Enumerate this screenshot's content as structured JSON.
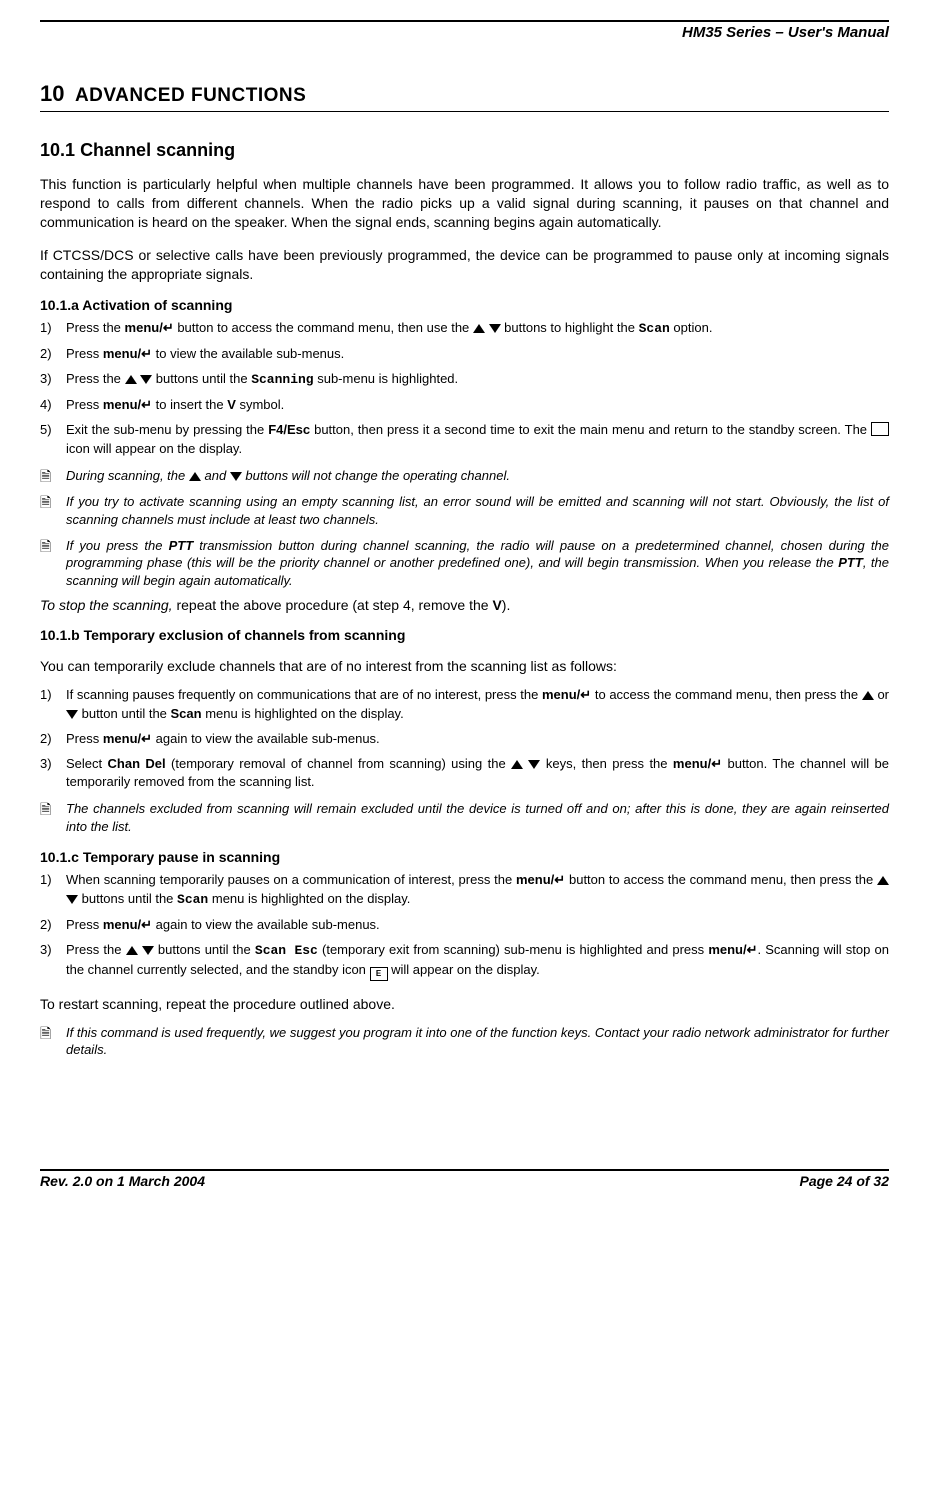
{
  "header": {
    "title": "HM35 Series – User's Manual"
  },
  "chapter": {
    "number": "10",
    "title": "ADVANCED FUNCTIONS"
  },
  "section": {
    "number": "10.1",
    "title": "Channel scanning",
    "para1": "This function is particularly helpful when multiple channels have been programmed.  It allows you to follow radio traffic, as well as to respond to calls from different channels.  When the radio picks up a valid signal during scanning, it pauses on that channel and communication is heard on the speaker.  When the signal ends, scanning begins again automatically.",
    "para2": "If CTCSS/DCS or selective calls have been previously programmed, the device can be programmed to pause only at incoming signals containing the appropriate signals."
  },
  "sub_a": {
    "heading": "10.1.a    Activation of scanning",
    "step1_a": "Press the ",
    "step1_b": " button to access the command menu, then use the ",
    "step1_c": " buttons to highlight the ",
    "step1_d": " option.",
    "step2_a": "Press ",
    "step2_b": " to view the available sub-menus.",
    "step3_a": "Press the ",
    "step3_b": " buttons until the ",
    "step3_c": " sub-menu is highlighted.",
    "step4_a": "Press ",
    "step4_b": " to insert the ",
    "step4_c": " symbol.",
    "step5_a": "Exit the sub-menu by pressing the ",
    "step5_b": " button, then press it a second time to exit the main menu and return to the standby screen.  The ",
    "step5_c": " icon will appear on the display.",
    "note1_a": "During scanning, the ",
    "note1_b": " and ",
    "note1_c": " buttons will not change the operating channel.",
    "note2": "If you try to activate scanning using an empty scanning list, an error sound will be emitted and scanning will not start.  Obviously, the list of scanning channels must include at least two channels.",
    "note3_a": "If you press the ",
    "note3_b": " transmission button during channel scanning, the radio will pause on a predetermined channel, chosen during the programming phase (this will be the priority channel or another predefined one), and will begin transmission.  When you release the ",
    "note3_c": ", the scanning will begin again automatically.",
    "stop_a": "To stop the scanning,",
    "stop_b": " repeat the above procedure (at step 4, remove the ",
    "stop_c": ")."
  },
  "sub_b": {
    "heading": "10.1.b    Temporary exclusion of channels from scanning",
    "intro": "You can temporarily exclude channels that are of no interest from the scanning list as follows:",
    "step1_a": "If scanning pauses frequently on communications that are of no interest, press the ",
    "step1_b": " to access the command menu, then press the ",
    "step1_c": " or ",
    "step1_d": " button until the ",
    "step1_e": " menu is highlighted on the display.",
    "step2_a": "Press ",
    "step2_b": " again to view the available sub-menus.",
    "step3_a": "Select ",
    "step3_b": " (temporary removal of channel from scanning) using the ",
    "step3_c": " keys, then press the ",
    "step3_d": " button.  The channel will be temporarily removed from the scanning list.",
    "note": " The channels excluded from scanning will remain excluded until the device is turned off and on; after this is done, they are again reinserted into the list."
  },
  "sub_c": {
    "heading": "10.1.c    Temporary pause in scanning",
    "step1_a": "When scanning temporarily pauses on a communication of interest, press the ",
    "step1_b": " button to access the command menu, then press the ",
    "step1_c": " buttons until the ",
    "step1_d": " menu is highlighted on the display.",
    "step2_a": "Press ",
    "step2_b": " again to view the available sub-menus.",
    "step3_a": "Press the ",
    "step3_b": " buttons until the ",
    "step3_c": " (temporary exit from scanning) sub-menu is highlighted and press ",
    "step3_d": ".  Scanning will stop on the channel currently selected, and the standby icon ",
    "step3_e": " will appear on the display.",
    "restart": "To restart scanning, repeat the procedure outlined above.",
    "note": " If this command is used frequently, we suggest you program it into one of the function keys.  Contact your radio network administrator for further details."
  },
  "labels": {
    "menu": "menu/↵",
    "scan": "Scan",
    "scanning_mono": "Scanning",
    "f4esc": "F4/Esc",
    "ptt": "PTT",
    "chan_del": "Chan Del",
    "scan_mono": "Scan",
    "scan_esc": "Scan Esc"
  },
  "footer": {
    "left": "Rev. 2.0 on 1 March 2004",
    "right": "Page 24 of 32"
  }
}
